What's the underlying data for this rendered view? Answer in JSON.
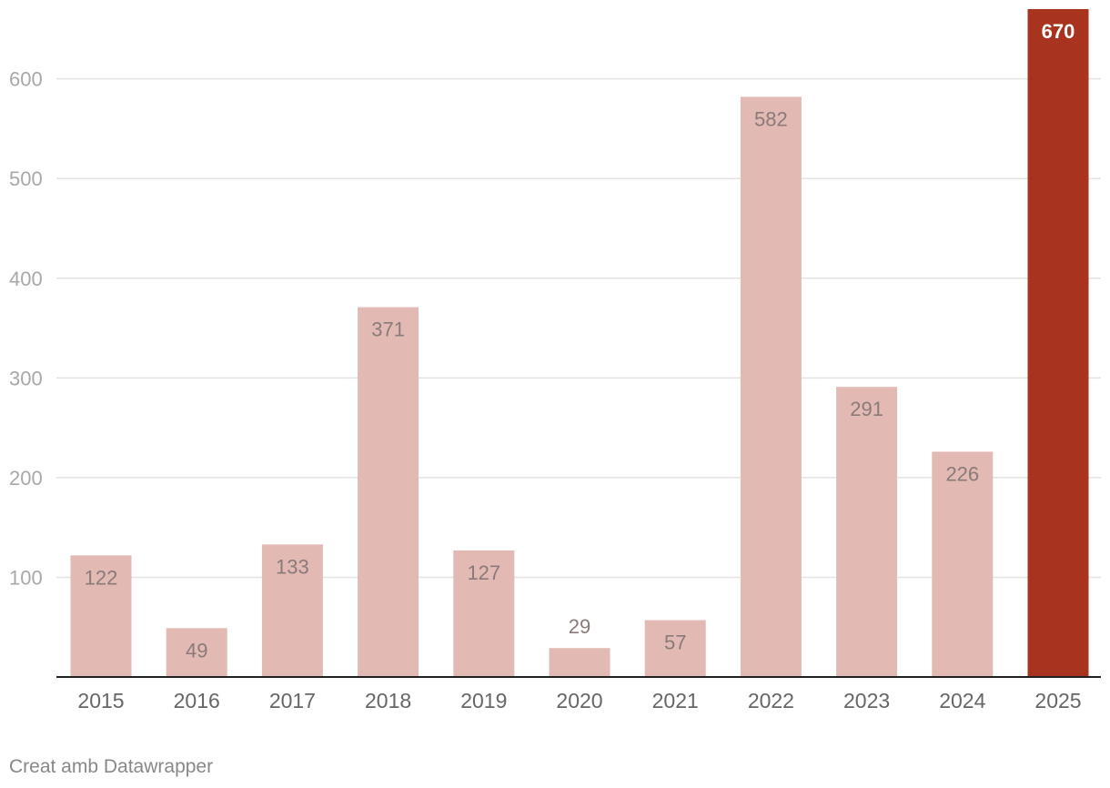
{
  "chart_data": {
    "type": "bar",
    "categories": [
      "2015",
      "2016",
      "2017",
      "2018",
      "2019",
      "2020",
      "2021",
      "2022",
      "2023",
      "2024",
      "2025"
    ],
    "values": [
      122,
      49,
      133,
      371,
      127,
      29,
      57,
      582,
      291,
      226,
      670
    ],
    "highlight_index": 10,
    "yticks": [
      100,
      200,
      300,
      400,
      500,
      600
    ],
    "ylim": [
      0,
      670
    ],
    "grid": true,
    "title": "",
    "xlabel": "",
    "ylabel": "",
    "colors": {
      "bar": "#e2b9b3",
      "highlight": "#a8341f",
      "label": "#8a7a7a",
      "highlight_label": "#ffffff"
    }
  },
  "footer": {
    "credit": "Creat amb Datawrapper"
  }
}
